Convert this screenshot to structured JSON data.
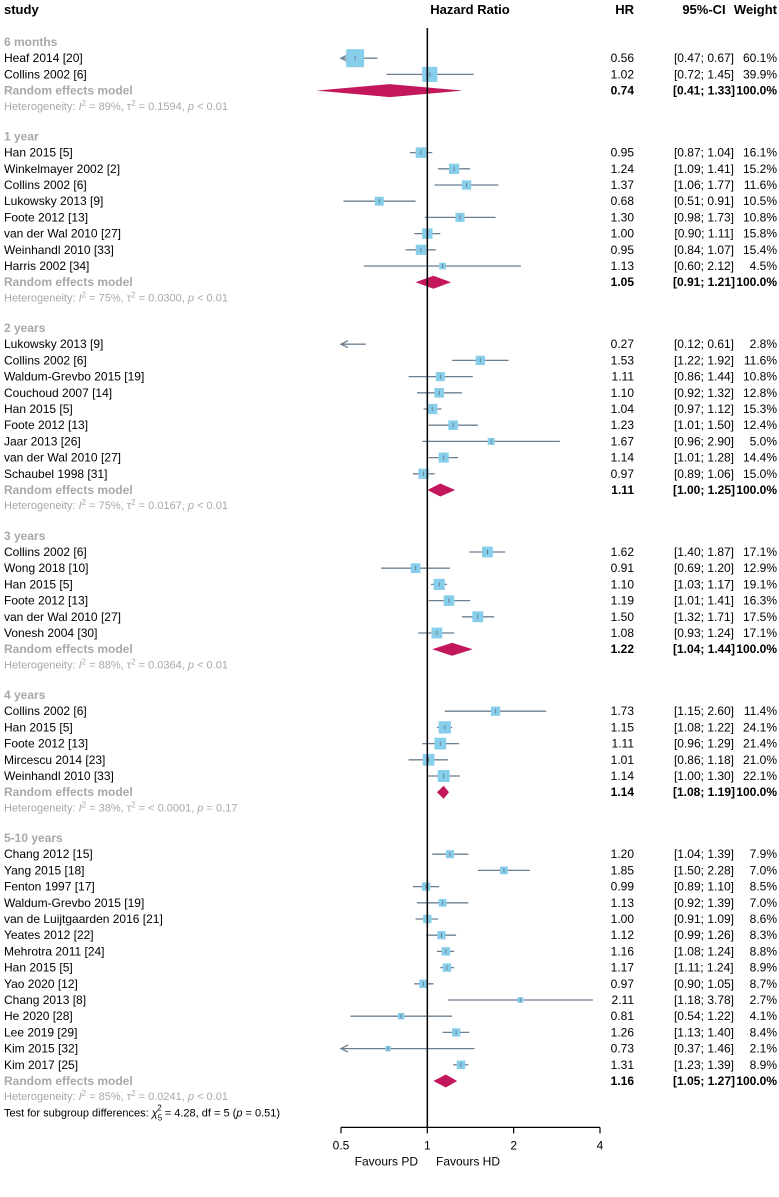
{
  "chart_data": {
    "type": "forest",
    "scale": "log",
    "headers": {
      "study": "study",
      "measure": "Hazard Ratio",
      "hr": "HR",
      "ci": "95%-CI",
      "weight": "Weight"
    },
    "x_ticks": [
      {
        "value": 0.5,
        "label": "0.5"
      },
      {
        "value": 1,
        "label": "1"
      },
      {
        "value": 2,
        "label": "2"
      },
      {
        "value": 4,
        "label": "4"
      }
    ],
    "favours_left": "Favours PD",
    "favours_right": "Favours HD",
    "subgroups": [
      {
        "name": "6 months",
        "studies": [
          {
            "label": "Heaf 2014 [20]",
            "hr": 0.56,
            "lo": 0.47,
            "hi": 0.67,
            "hr_text": "0.56",
            "ci_text": "[0.47; 0.67]",
            "weight": "60.1%",
            "w": 60.1
          },
          {
            "label": "Collins 2002 [6]",
            "hr": 1.02,
            "lo": 0.72,
            "hi": 1.45,
            "hr_text": "1.02",
            "ci_text": "[0.72; 1.45]",
            "weight": "39.9%",
            "w": 39.9
          }
        ],
        "pooled": {
          "label": "Random effects model",
          "hr": 0.74,
          "lo": 0.41,
          "hi": 1.33,
          "hr_text": "0.74",
          "ci_text": "[0.41; 1.33]",
          "weight": "100.0%"
        },
        "het": {
          "i2": "89%",
          "tau2": "0.1594",
          "p": "< 0.01"
        }
      },
      {
        "name": "1 year",
        "studies": [
          {
            "label": "Han 2015 [5]",
            "hr": 0.95,
            "lo": 0.87,
            "hi": 1.04,
            "hr_text": "0.95",
            "ci_text": "[0.87; 1.04]",
            "weight": "16.1%",
            "w": 16.1
          },
          {
            "label": "Winkelmayer 2002 [2]",
            "hr": 1.24,
            "lo": 1.09,
            "hi": 1.41,
            "hr_text": "1.24",
            "ci_text": "[1.09; 1.41]",
            "weight": "15.2%",
            "w": 15.2
          },
          {
            "label": "Collins 2002 [6]",
            "hr": 1.37,
            "lo": 1.06,
            "hi": 1.77,
            "hr_text": "1.37",
            "ci_text": "[1.06; 1.77]",
            "weight": "11.6%",
            "w": 11.6
          },
          {
            "label": "Lukowsky 2013 [9]",
            "hr": 0.68,
            "lo": 0.51,
            "hi": 0.91,
            "hr_text": "0.68",
            "ci_text": "[0.51; 0.91]",
            "weight": "10.5%",
            "w": 10.5
          },
          {
            "label": "Foote 2012 [13]",
            "hr": 1.3,
            "lo": 0.98,
            "hi": 1.73,
            "hr_text": "1.30",
            "ci_text": "[0.98; 1.73]",
            "weight": "10.8%",
            "w": 10.8
          },
          {
            "label": "van der Wal 2010 [27]",
            "hr": 1.0,
            "lo": 0.9,
            "hi": 1.11,
            "hr_text": "1.00",
            "ci_text": "[0.90; 1.11]",
            "weight": "15.8%",
            "w": 15.8
          },
          {
            "label": "Weinhandl 2010 [33]",
            "hr": 0.95,
            "lo": 0.84,
            "hi": 1.07,
            "hr_text": "0.95",
            "ci_text": "[0.84; 1.07]",
            "weight": "15.4%",
            "w": 15.4
          },
          {
            "label": "Harris 2002 [34]",
            "hr": 1.13,
            "lo": 0.6,
            "hi": 2.12,
            "hr_text": "1.13",
            "ci_text": "[0.60; 2.12]",
            "weight": "4.5%",
            "w": 4.5
          }
        ],
        "pooled": {
          "label": "Random effects model",
          "hr": 1.05,
          "lo": 0.91,
          "hi": 1.21,
          "hr_text": "1.05",
          "ci_text": "[0.91; 1.21]",
          "weight": "100.0%"
        },
        "het": {
          "i2": "75%",
          "tau2": "0.0300",
          "p": "< 0.01"
        }
      },
      {
        "name": "2 years",
        "studies": [
          {
            "label": "Lukowsky 2013 [9]",
            "hr": 0.27,
            "lo": 0.12,
            "hi": 0.61,
            "hr_text": "0.27",
            "ci_text": "[0.12; 0.61]",
            "weight": "2.8%",
            "w": 2.8
          },
          {
            "label": "Collins 2002 [6]",
            "hr": 1.53,
            "lo": 1.22,
            "hi": 1.92,
            "hr_text": "1.53",
            "ci_text": "[1.22; 1.92]",
            "weight": "11.6%",
            "w": 11.6
          },
          {
            "label": "Waldum-Grevbo 2015 [19]",
            "hr": 1.11,
            "lo": 0.86,
            "hi": 1.44,
            "hr_text": "1.11",
            "ci_text": "[0.86; 1.44]",
            "weight": "10.8%",
            "w": 10.8
          },
          {
            "label": "Couchoud 2007 [14]",
            "hr": 1.1,
            "lo": 0.92,
            "hi": 1.32,
            "hr_text": "1.10",
            "ci_text": "[0.92; 1.32]",
            "weight": "12.8%",
            "w": 12.8
          },
          {
            "label": "Han 2015 [5]",
            "hr": 1.04,
            "lo": 0.97,
            "hi": 1.12,
            "hr_text": "1.04",
            "ci_text": "[0.97; 1.12]",
            "weight": "15.3%",
            "w": 15.3
          },
          {
            "label": "Foote 2012 [13]",
            "hr": 1.23,
            "lo": 1.01,
            "hi": 1.5,
            "hr_text": "1.23",
            "ci_text": "[1.01; 1.50]",
            "weight": "12.4%",
            "w": 12.4
          },
          {
            "label": "Jaar 2013 [26]",
            "hr": 1.67,
            "lo": 0.96,
            "hi": 2.9,
            "hr_text": "1.67",
            "ci_text": "[0.96; 2.90]",
            "weight": "5.0%",
            "w": 5.0
          },
          {
            "label": "van der Wal 2010 [27]",
            "hr": 1.14,
            "lo": 1.01,
            "hi": 1.28,
            "hr_text": "1.14",
            "ci_text": "[1.01; 1.28]",
            "weight": "14.4%",
            "w": 14.4
          },
          {
            "label": "Schaubel 1998 [31]",
            "hr": 0.97,
            "lo": 0.89,
            "hi": 1.06,
            "hr_text": "0.97",
            "ci_text": "[0.89; 1.06]",
            "weight": "15.0%",
            "w": 15.0
          }
        ],
        "pooled": {
          "label": "Random effects model",
          "hr": 1.11,
          "lo": 1.0,
          "hi": 1.25,
          "hr_text": "1.11",
          "ci_text": "[1.00; 1.25]",
          "weight": "100.0%"
        },
        "het": {
          "i2": "75%",
          "tau2": "0.0167",
          "p": "< 0.01"
        }
      },
      {
        "name": "3 years",
        "studies": [
          {
            "label": "Collins 2002 [6]",
            "hr": 1.62,
            "lo": 1.4,
            "hi": 1.87,
            "hr_text": "1.62",
            "ci_text": "[1.40; 1.87]",
            "weight": "17.1%",
            "w": 17.1
          },
          {
            "label": "Wong 2018 [10]",
            "hr": 0.91,
            "lo": 0.69,
            "hi": 1.2,
            "hr_text": "0.91",
            "ci_text": "[0.69; 1.20]",
            "weight": "12.9%",
            "w": 12.9
          },
          {
            "label": "Han 2015 [5]",
            "hr": 1.1,
            "lo": 1.03,
            "hi": 1.17,
            "hr_text": "1.10",
            "ci_text": "[1.03; 1.17]",
            "weight": "19.1%",
            "w": 19.1
          },
          {
            "label": "Foote 2012 [13]",
            "hr": 1.19,
            "lo": 1.01,
            "hi": 1.41,
            "hr_text": "1.19",
            "ci_text": "[1.01; 1.41]",
            "weight": "16.3%",
            "w": 16.3
          },
          {
            "label": "van der Wal 2010 [27]",
            "hr": 1.5,
            "lo": 1.32,
            "hi": 1.71,
            "hr_text": "1.50",
            "ci_text": "[1.32; 1.71]",
            "weight": "17.5%",
            "w": 17.5
          },
          {
            "label": "Vonesh 2004 [30]",
            "hr": 1.08,
            "lo": 0.93,
            "hi": 1.24,
            "hr_text": "1.08",
            "ci_text": "[0.93; 1.24]",
            "weight": "17.1%",
            "w": 17.1
          }
        ],
        "pooled": {
          "label": "Random effects model",
          "hr": 1.22,
          "lo": 1.04,
          "hi": 1.44,
          "hr_text": "1.22",
          "ci_text": "[1.04; 1.44]",
          "weight": "100.0%"
        },
        "het": {
          "i2": "88%",
          "tau2": "0.0364",
          "p": "< 0.01"
        }
      },
      {
        "name": "4 years",
        "studies": [
          {
            "label": "Collins 2002 [6]",
            "hr": 1.73,
            "lo": 1.15,
            "hi": 2.6,
            "hr_text": "1.73",
            "ci_text": "[1.15; 2.60]",
            "weight": "11.4%",
            "w": 11.4
          },
          {
            "label": "Han 2015 [5]",
            "hr": 1.15,
            "lo": 1.08,
            "hi": 1.22,
            "hr_text": "1.15",
            "ci_text": "[1.08; 1.22]",
            "weight": "24.1%",
            "w": 24.1
          },
          {
            "label": "Foote 2012 [13]",
            "hr": 1.11,
            "lo": 0.96,
            "hi": 1.29,
            "hr_text": "1.11",
            "ci_text": "[0.96; 1.29]",
            "weight": "21.4%",
            "w": 21.4
          },
          {
            "label": "Mircescu 2014 [23]",
            "hr": 1.01,
            "lo": 0.86,
            "hi": 1.18,
            "hr_text": "1.01",
            "ci_text": "[0.86; 1.18]",
            "weight": "21.0%",
            "w": 21.0
          },
          {
            "label": "Weinhandl 2010 [33]",
            "hr": 1.14,
            "lo": 1.0,
            "hi": 1.3,
            "hr_text": "1.14",
            "ci_text": "[1.00; 1.30]",
            "weight": "22.1%",
            "w": 22.1
          }
        ],
        "pooled": {
          "label": "Random effects model",
          "hr": 1.14,
          "lo": 1.08,
          "hi": 1.19,
          "hr_text": "1.14",
          "ci_text": "[1.08; 1.19]",
          "weight": "100.0%"
        },
        "het": {
          "i2": "38%",
          "tau2": "< 0.0001",
          "p": "0.17"
        }
      },
      {
        "name": "5-10 years",
        "studies": [
          {
            "label": "Chang 2012 [15]",
            "hr": 1.2,
            "lo": 1.04,
            "hi": 1.39,
            "hr_text": "1.20",
            "ci_text": "[1.04; 1.39]",
            "weight": "7.9%",
            "w": 7.9
          },
          {
            "label": "Yang 2015 [18]",
            "hr": 1.85,
            "lo": 1.5,
            "hi": 2.28,
            "hr_text": "1.85",
            "ci_text": "[1.50; 2.28]",
            "weight": "7.0%",
            "w": 7.0
          },
          {
            "label": "Fenton 1997 [17]",
            "hr": 0.99,
            "lo": 0.89,
            "hi": 1.1,
            "hr_text": "0.99",
            "ci_text": "[0.89; 1.10]",
            "weight": "8.5%",
            "w": 8.5
          },
          {
            "label": "Waldum-Grevbo 2015 [19]",
            "hr": 1.13,
            "lo": 0.92,
            "hi": 1.39,
            "hr_text": "1.13",
            "ci_text": "[0.92; 1.39]",
            "weight": "7.0%",
            "w": 7.0
          },
          {
            "label": "van de Luijtgaarden 2016 [21]",
            "hr": 1.0,
            "lo": 0.91,
            "hi": 1.09,
            "hr_text": "1.00",
            "ci_text": "[0.91; 1.09]",
            "weight": "8.6%",
            "w": 8.6
          },
          {
            "label": "Yeates 2012 [22]",
            "hr": 1.12,
            "lo": 0.99,
            "hi": 1.26,
            "hr_text": "1.12",
            "ci_text": "[0.99; 1.26]",
            "weight": "8.3%",
            "w": 8.3
          },
          {
            "label": "Mehrotra 2011 [24]",
            "hr": 1.16,
            "lo": 1.08,
            "hi": 1.24,
            "hr_text": "1.16",
            "ci_text": "[1.08; 1.24]",
            "weight": "8.8%",
            "w": 8.8
          },
          {
            "label": "Han 2015 [5]",
            "hr": 1.17,
            "lo": 1.11,
            "hi": 1.24,
            "hr_text": "1.17",
            "ci_text": "[1.11; 1.24]",
            "weight": "8.9%",
            "w": 8.9
          },
          {
            "label": "Yao 2020 [12]",
            "hr": 0.97,
            "lo": 0.9,
            "hi": 1.05,
            "hr_text": "0.97",
            "ci_text": "[0.90; 1.05]",
            "weight": "8.7%",
            "w": 8.7
          },
          {
            "label": "Chang 2013 [8]",
            "hr": 2.11,
            "lo": 1.18,
            "hi": 3.78,
            "hr_text": "2.11",
            "ci_text": "[1.18; 3.78]",
            "weight": "2.7%",
            "w": 2.7
          },
          {
            "label": "He 2020 [28]",
            "hr": 0.81,
            "lo": 0.54,
            "hi": 1.22,
            "hr_text": "0.81",
            "ci_text": "[0.54; 1.22]",
            "weight": "4.1%",
            "w": 4.1
          },
          {
            "label": "Lee 2019 [29]",
            "hr": 1.26,
            "lo": 1.13,
            "hi": 1.4,
            "hr_text": "1.26",
            "ci_text": "[1.13; 1.40]",
            "weight": "8.4%",
            "w": 8.4
          },
          {
            "label": "Kim 2015 [32]",
            "hr": 0.73,
            "lo": 0.37,
            "hi": 1.46,
            "hr_text": "0.73",
            "ci_text": "[0.37; 1.46]",
            "weight": "2.1%",
            "w": 2.1
          },
          {
            "label": "Kim 2017 [25]",
            "hr": 1.31,
            "lo": 1.23,
            "hi": 1.39,
            "hr_text": "1.31",
            "ci_text": "[1.23; 1.39]",
            "weight": "8.9%",
            "w": 8.9
          }
        ],
        "pooled": {
          "label": "Random effects model",
          "hr": 1.16,
          "lo": 1.05,
          "hi": 1.27,
          "hr_text": "1.16",
          "ci_text": "[1.05; 1.27]",
          "weight": "100.0%"
        },
        "het": {
          "i2": "85%",
          "tau2": "0.0241",
          "p": "< 0.01"
        }
      }
    ],
    "subgroup_test": {
      "prefix": "Test for subgroup differences: ",
      "chi_sub": "5",
      "chi_value": "4.28",
      "df": "5",
      "p": "0.51"
    },
    "colors": {
      "square": "#87ceeb",
      "ci_line": "#6b7f91",
      "diamond": "#c2185b",
      "gray_text": "#a8a8a8",
      "axis": "#000000"
    }
  }
}
